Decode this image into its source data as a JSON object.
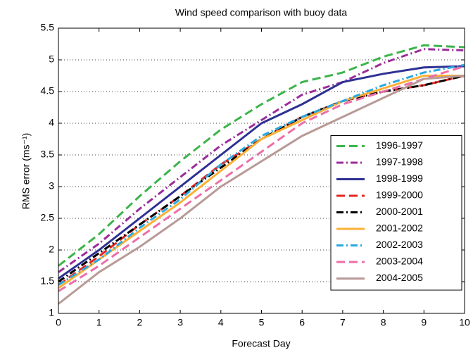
{
  "chart_data": {
    "type": "line",
    "title": "Wind speed comparison with buoy data",
    "xlabel": "Forecast Day",
    "ylabel": "RMS error (ms⁻¹)",
    "x": [
      0,
      1,
      2,
      3,
      4,
      5,
      6,
      7,
      8,
      9,
      10
    ],
    "xlim": [
      0,
      10
    ],
    "xticks": [
      0,
      1,
      2,
      3,
      4,
      5,
      6,
      7,
      8,
      9,
      10
    ],
    "ylim": [
      1,
      5.5
    ],
    "yticks": [
      1,
      1.5,
      2,
      2.5,
      3,
      3.5,
      4,
      4.5,
      5,
      5.5
    ],
    "grid": true,
    "legend": "lower right",
    "series": [
      {
        "name": "1996-1997",
        "color": "#3cb44b",
        "style": "dashed",
        "values": [
          1.75,
          2.25,
          2.85,
          3.4,
          3.9,
          4.3,
          4.65,
          4.8,
          5.05,
          5.23,
          5.2
        ]
      },
      {
        "name": "1997-1998",
        "color": "#9b2d9b",
        "style": "dashdot",
        "values": [
          1.65,
          2.1,
          2.65,
          3.15,
          3.65,
          4.05,
          4.45,
          4.65,
          4.95,
          5.17,
          5.15
        ]
      },
      {
        "name": "1998-1999",
        "color": "#2e3192",
        "style": "solid",
        "values": [
          1.55,
          2.0,
          2.5,
          3.0,
          3.5,
          4.0,
          4.3,
          4.65,
          4.78,
          4.88,
          4.9
        ]
      },
      {
        "name": "1999-2000",
        "color": "#e52521",
        "style": "dashed",
        "values": [
          1.45,
          1.9,
          2.4,
          2.85,
          3.35,
          3.75,
          4.1,
          4.35,
          4.5,
          4.6,
          4.75
        ]
      },
      {
        "name": "2000-2001",
        "color": "#000000",
        "style": "dashdot",
        "values": [
          1.5,
          1.95,
          2.4,
          2.85,
          3.3,
          3.75,
          4.1,
          4.35,
          4.5,
          4.6,
          4.75
        ]
      },
      {
        "name": "2001-2002",
        "color": "#fbb034",
        "style": "solid",
        "values": [
          1.4,
          1.85,
          2.3,
          2.75,
          3.25,
          3.75,
          4.05,
          4.35,
          4.55,
          4.75,
          4.75
        ]
      },
      {
        "name": "2002-2003",
        "color": "#29a8e0",
        "style": "dashdot",
        "values": [
          1.45,
          1.85,
          2.35,
          2.8,
          3.35,
          3.8,
          4.1,
          4.35,
          4.6,
          4.8,
          4.92
        ]
      },
      {
        "name": "2003-2004",
        "color": "#ec6fa8",
        "style": "dashed",
        "values": [
          1.35,
          1.75,
          2.2,
          2.65,
          3.1,
          3.55,
          4.0,
          4.3,
          4.5,
          4.7,
          4.9
        ]
      },
      {
        "name": "2004-2005",
        "color": "#b89a97",
        "style": "solid",
        "values": [
          1.15,
          1.65,
          2.05,
          2.5,
          3.0,
          3.4,
          3.8,
          4.1,
          4.4,
          4.7,
          4.75
        ]
      }
    ]
  }
}
